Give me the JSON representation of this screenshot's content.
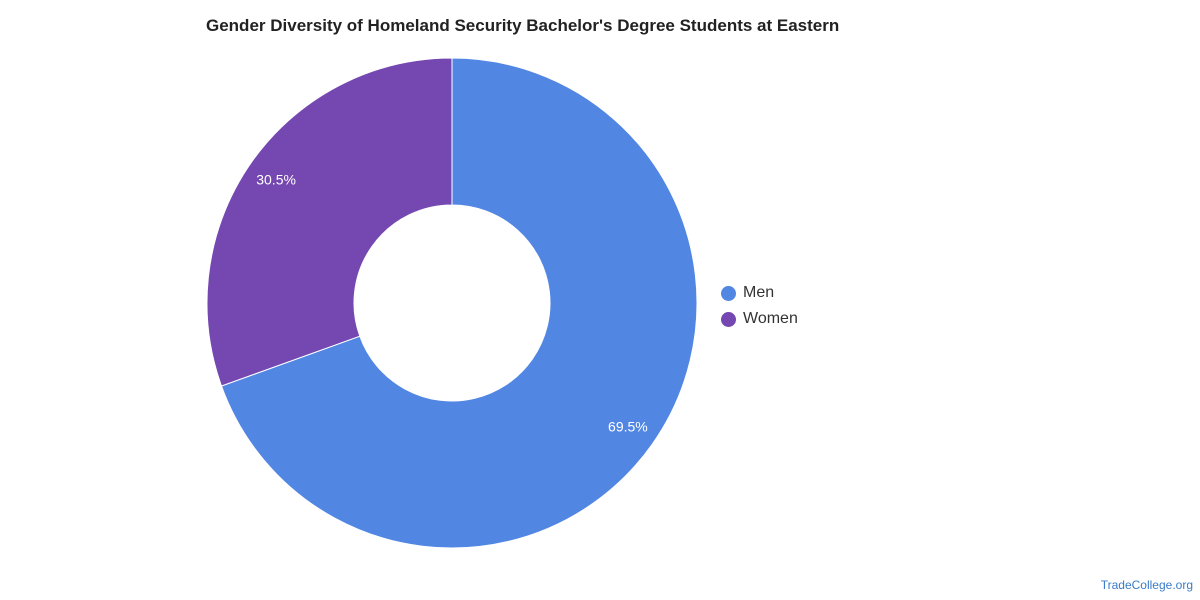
{
  "chart_data": {
    "type": "pie",
    "title": "Gender Diversity of Homeland Security Bachelor's Degree Students at Eastern",
    "categories": [
      "Men",
      "Women"
    ],
    "values": [
      69.5,
      30.5
    ],
    "data_labels": [
      "69.5%",
      "30.5%"
    ],
    "colors": [
      "#5286e3",
      "#7547b1"
    ],
    "donut": true,
    "legend_position": "right"
  },
  "watermark": "TradeCollege.org"
}
